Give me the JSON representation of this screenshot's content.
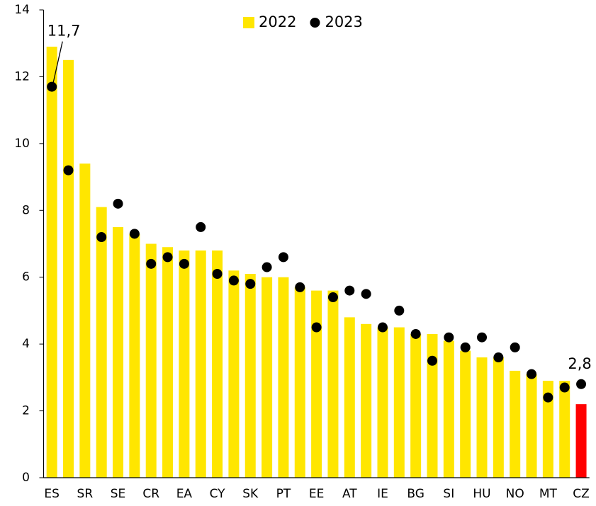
{
  "chart_data": {
    "type": "bar",
    "categories": [
      "ES",
      null,
      "SR",
      null,
      "SE",
      null,
      "CR",
      null,
      "EA",
      null,
      "CY",
      null,
      "SK",
      null,
      "PT",
      null,
      "EE",
      null,
      "AT",
      null,
      "IE",
      null,
      "BG",
      null,
      "SI",
      null,
      "HU",
      null,
      "NO",
      null,
      "MT",
      null,
      "CZ"
    ],
    "series": [
      {
        "name": "2022",
        "type": "bar",
        "color": "#ffe600",
        "colors": [
          "#ffe600",
          "#ffe600",
          "#ffe600",
          "#ffe600",
          "#ffe600",
          "#ffe600",
          "#ffe600",
          "#ffe600",
          "#ffe600",
          "#ffe600",
          "#ffe600",
          "#ffe600",
          "#ffe600",
          "#ffe600",
          "#ffe600",
          "#ffe600",
          "#ffe600",
          "#ffe600",
          "#ffe600",
          "#ffe600",
          "#ffe600",
          "#ffe600",
          "#ffe600",
          "#ffe600",
          "#ffe600",
          "#ffe600",
          "#ffe600",
          "#ffe600",
          "#ffe600",
          "#ffe600",
          "#ffe600",
          "#ffe600",
          "#ff0000"
        ],
        "values": [
          12.9,
          12.5,
          9.4,
          8.1,
          7.5,
          7.3,
          7.0,
          6.9,
          6.8,
          6.8,
          6.8,
          6.2,
          6.1,
          6.0,
          6.0,
          5.7,
          5.6,
          5.6,
          4.8,
          4.6,
          4.5,
          4.5,
          4.3,
          4.3,
          4.1,
          3.8,
          3.6,
          3.6,
          3.2,
          3.1,
          2.9,
          2.9,
          2.2
        ]
      },
      {
        "name": "2023",
        "type": "dot",
        "color": "#000000",
        "values": [
          11.7,
          9.2,
          null,
          7.2,
          8.2,
          7.3,
          6.4,
          6.6,
          6.4,
          7.5,
          6.1,
          5.9,
          5.8,
          6.3,
          6.6,
          5.7,
          4.5,
          5.4,
          5.6,
          5.5,
          4.5,
          5.0,
          4.3,
          3.5,
          4.2,
          3.9,
          4.2,
          3.6,
          3.9,
          3.1,
          2.4,
          2.7,
          2.8
        ],
        "value_labels": [
          "11,7",
          null,
          null,
          null,
          null,
          null,
          null,
          null,
          null,
          null,
          null,
          null,
          null,
          null,
          null,
          null,
          null,
          null,
          null,
          null,
          null,
          null,
          null,
          null,
          null,
          null,
          null,
          null,
          null,
          null,
          null,
          null,
          "2,8"
        ]
      }
    ],
    "ylim": [
      0,
      14
    ],
    "yticks": [
      0,
      2,
      4,
      6,
      8,
      10,
      12,
      14
    ],
    "grid": false,
    "legend": "top"
  }
}
